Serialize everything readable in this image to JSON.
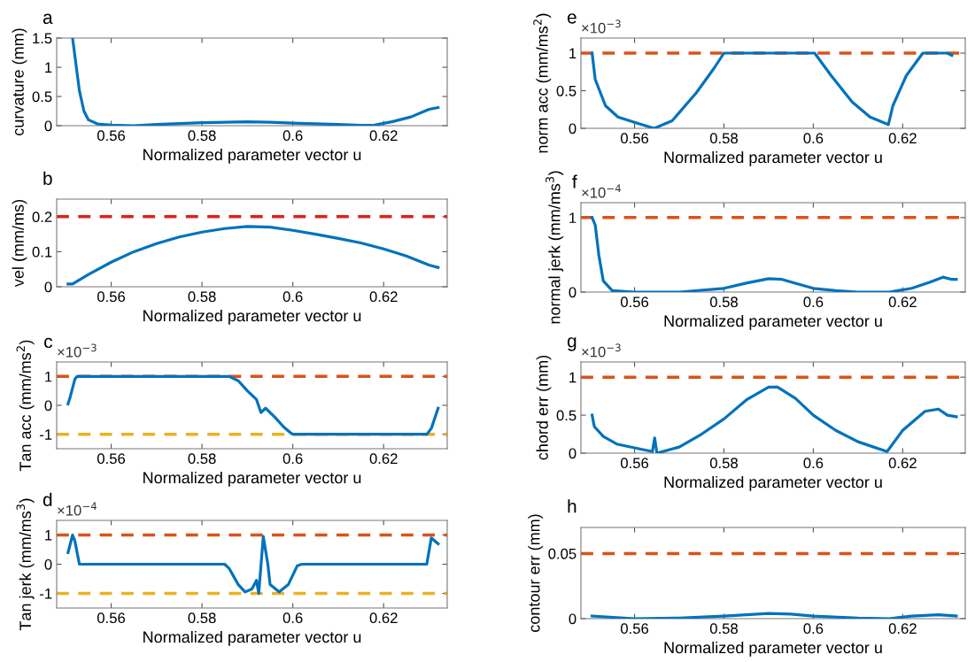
{
  "chart_data": [
    {
      "type": "line",
      "title": "a",
      "xlabel": "Normalized parameter vector u",
      "ylabel": "curvature (mm)",
      "xlim": [
        0.548,
        0.634
      ],
      "xticks": [
        0.56,
        0.58,
        0.6,
        0.62
      ],
      "ylim": [
        0,
        1.5
      ],
      "yticks": [
        0,
        0.5,
        1,
        1.5
      ],
      "grid": false,
      "series": [
        {
          "color": "#0072bd",
          "x": [
            0.5515,
            0.553,
            0.554,
            0.555,
            0.557,
            0.56,
            0.565,
            0.57,
            0.58,
            0.59,
            0.595,
            0.6,
            0.61,
            0.615,
            0.618,
            0.622,
            0.626,
            0.63,
            0.632
          ],
          "values": [
            1.5,
            0.6,
            0.25,
            0.1,
            0.03,
            0.01,
            0.0,
            0.02,
            0.05,
            0.065,
            0.06,
            0.045,
            0.02,
            0.005,
            0.01,
            0.07,
            0.15,
            0.28,
            0.31
          ]
        }
      ]
    },
    {
      "type": "line",
      "title": "b",
      "xlabel": "Normalized parameter vector u",
      "ylabel": "vel (mm/ms)",
      "xlim": [
        0.548,
        0.634
      ],
      "xticks": [
        0.56,
        0.58,
        0.6,
        0.62
      ],
      "ylim": [
        0,
        0.25
      ],
      "yticks": [
        0,
        0.1,
        0.2
      ],
      "grid": false,
      "ref_lines": [
        {
          "axis": "y",
          "value": 0.2,
          "color": "#e0201b",
          "line_style": "dashed"
        }
      ],
      "series": [
        {
          "color": "#0072bd",
          "x": [
            0.5505,
            0.5515,
            0.555,
            0.56,
            0.565,
            0.57,
            0.575,
            0.58,
            0.585,
            0.59,
            0.595,
            0.6,
            0.605,
            0.61,
            0.615,
            0.62,
            0.625,
            0.63,
            0.632
          ],
          "values": [
            0.008,
            0.008,
            0.035,
            0.07,
            0.1,
            0.123,
            0.142,
            0.156,
            0.166,
            0.172,
            0.17,
            0.161,
            0.15,
            0.138,
            0.125,
            0.108,
            0.088,
            0.062,
            0.055
          ]
        }
      ]
    },
    {
      "type": "line",
      "title": "c",
      "xlabel": "Normalized parameter vector u",
      "ylabel": "Tan acc (mm/ms$^{2}$)",
      "annotations": [
        "×10$^{−3}$"
      ],
      "xlim": [
        0.548,
        0.634
      ],
      "xticks": [
        0.56,
        0.58,
        0.6,
        0.62
      ],
      "ylim": [
        -1.5,
        1.5
      ],
      "yticks": [
        -1,
        0,
        1
      ],
      "grid": false,
      "ref_lines": [
        {
          "axis": "y",
          "value": 1,
          "color": "#d95319",
          "line_style": "dashed"
        },
        {
          "axis": "y",
          "value": -1,
          "color": "#edb120",
          "line_style": "dashed"
        }
      ],
      "series": [
        {
          "color": "#0072bd",
          "x": [
            0.5505,
            0.551,
            0.552,
            0.5525,
            0.586,
            0.588,
            0.59,
            0.592,
            0.593,
            0.594,
            0.596,
            0.598,
            0.5995,
            0.6,
            0.6295,
            0.6305,
            0.632
          ],
          "values": [
            0.05,
            0.3,
            0.9,
            1,
            1,
            0.85,
            0.5,
            0.2,
            -0.25,
            -0.1,
            -0.4,
            -0.75,
            -0.95,
            -1,
            -1,
            -0.8,
            -0.1
          ]
        }
      ]
    },
    {
      "type": "line",
      "title": "d",
      "xlabel": "Normalized parameter vector u",
      "ylabel": "Tan jerk (mm/ms$^{3}$)",
      "annotations": [
        "×10$^{−4}$"
      ],
      "xlim": [
        0.548,
        0.634
      ],
      "xticks": [
        0.56,
        0.58,
        0.6,
        0.62
      ],
      "ylim": [
        -1.5,
        1.5
      ],
      "yticks": [
        -1,
        0,
        1
      ],
      "grid": false,
      "ref_lines": [
        {
          "axis": "y",
          "value": 1,
          "color": "#d95319",
          "line_style": "dashed"
        },
        {
          "axis": "y",
          "value": -1,
          "color": "#edb120",
          "line_style": "dashed"
        }
      ],
      "series": [
        {
          "color": "#0072bd",
          "x": [
            0.5505,
            0.5515,
            0.552,
            0.553,
            0.585,
            0.586,
            0.588,
            0.5895,
            0.591,
            0.592,
            0.5925,
            0.5935,
            0.5945,
            0.595,
            0.597,
            0.599,
            0.601,
            0.602,
            0.6295,
            0.6305,
            0.632
          ],
          "values": [
            0.4,
            1.0,
            0.8,
            0.0,
            0,
            -0.15,
            -0.7,
            -0.95,
            -0.85,
            -0.55,
            -1.0,
            0.95,
            0.0,
            -0.7,
            -0.95,
            -0.7,
            -0.05,
            0,
            0,
            0.9,
            0.7
          ]
        }
      ]
    },
    {
      "type": "line",
      "title": "e",
      "xlabel": "Normalized parameter vector u",
      "ylabel": "norm acc (mm/ms$^{2}$)",
      "annotations": [
        "×10$^{−3}$"
      ],
      "xlim": [
        0.548,
        0.634
      ],
      "xticks": [
        0.56,
        0.58,
        0.6,
        0.62
      ],
      "ylim": [
        0,
        1.2
      ],
      "yticks": [
        0,
        0.5,
        1
      ],
      "grid": false,
      "ref_lines": [
        {
          "axis": "y",
          "value": 1,
          "color": "#d95319",
          "line_style": "dashed"
        }
      ],
      "series": [
        {
          "color": "#0072bd",
          "x": [
            0.5505,
            0.5512,
            0.5535,
            0.5563,
            0.56,
            0.5644,
            0.5684,
            0.5738,
            0.5778,
            0.58,
            0.6003,
            0.604,
            0.6087,
            0.6127,
            0.6168,
            0.6178,
            0.6208,
            0.6245,
            0.63,
            0.631
          ],
          "values": [
            1,
            0.65,
            0.3,
            0.15,
            0.08,
            0.0,
            0.1,
            0.47,
            0.8,
            1,
            1,
            0.7,
            0.35,
            0.15,
            0.05,
            0.3,
            0.7,
            1,
            1,
            0.97
          ]
        }
      ]
    },
    {
      "type": "line",
      "title": "f",
      "xlabel": "Normalized parameter vector u",
      "ylabel": "normal jerk (mm/ms$^{3}$)",
      "annotations": [
        "×10$^{−4}$"
      ],
      "xlim": [
        0.548,
        0.634
      ],
      "xticks": [
        0.56,
        0.58,
        0.6,
        0.62
      ],
      "ylim": [
        0,
        1.2
      ],
      "yticks": [
        0,
        1
      ],
      "grid": false,
      "ref_lines": [
        {
          "axis": "y",
          "value": 1,
          "color": "#d95319",
          "line_style": "dashed"
        }
      ],
      "series": [
        {
          "color": "#0072bd",
          "x": [
            0.5505,
            0.5512,
            0.552,
            0.553,
            0.555,
            0.56,
            0.57,
            0.58,
            0.585,
            0.59,
            0.593,
            0.597,
            0.6,
            0.605,
            0.61,
            0.617,
            0.622,
            0.626,
            0.629,
            0.631,
            0.632
          ],
          "values": [
            1.0,
            0.9,
            0.5,
            0.15,
            0.02,
            0.0,
            0.0,
            0.05,
            0.12,
            0.18,
            0.17,
            0.1,
            0.05,
            0.02,
            0.0,
            0.0,
            0.05,
            0.13,
            0.2,
            0.17,
            0.17
          ]
        }
      ]
    },
    {
      "type": "line",
      "title": "g",
      "xlabel": "Normalized parameter vector u",
      "ylabel": "chord err (mm)",
      "annotations": [
        "×10$^{−3}$"
      ],
      "xlim": [
        0.548,
        0.634
      ],
      "xticks": [
        0.56,
        0.58,
        0.6,
        0.62
      ],
      "ylim": [
        0,
        1.2
      ],
      "yticks": [
        0,
        0.5,
        1
      ],
      "grid": false,
      "ref_lines": [
        {
          "axis": "y",
          "value": 1,
          "color": "#d95319",
          "line_style": "dashed"
        }
      ],
      "series": [
        {
          "color": "#0072bd",
          "x": [
            0.5505,
            0.551,
            0.553,
            0.556,
            0.56,
            0.564,
            0.5645,
            0.565,
            0.57,
            0.575,
            0.58,
            0.585,
            0.59,
            0.592,
            0.596,
            0.6,
            0.605,
            0.61,
            0.6165,
            0.62,
            0.625,
            0.628,
            0.63,
            0.632
          ],
          "values": [
            0.5,
            0.35,
            0.22,
            0.12,
            0.07,
            0.02,
            0.2,
            0.0,
            0.08,
            0.25,
            0.45,
            0.7,
            0.87,
            0.87,
            0.72,
            0.5,
            0.3,
            0.15,
            0.02,
            0.3,
            0.55,
            0.58,
            0.5,
            0.48
          ]
        }
      ]
    },
    {
      "type": "line",
      "title": "h",
      "xlabel": "Normalized parameter vector u",
      "ylabel": "contour err (mm)",
      "xlim": [
        0.548,
        0.634
      ],
      "xticks": [
        0.56,
        0.58,
        0.6,
        0.62
      ],
      "ylim": [
        0,
        0.07
      ],
      "yticks": [
        0,
        0.05
      ],
      "grid": false,
      "ref_lines": [
        {
          "axis": "y",
          "value": 0.05,
          "color": "#d95319",
          "line_style": "dashed"
        }
      ],
      "series": [
        {
          "color": "#0072bd",
          "x": [
            0.5505,
            0.56,
            0.57,
            0.58,
            0.59,
            0.595,
            0.6,
            0.61,
            0.617,
            0.622,
            0.628,
            0.632
          ],
          "values": [
            0.002,
            0.0,
            0.0005,
            0.002,
            0.004,
            0.0035,
            0.002,
            0.0005,
            0.0,
            0.002,
            0.003,
            0.002
          ]
        }
      ]
    }
  ]
}
